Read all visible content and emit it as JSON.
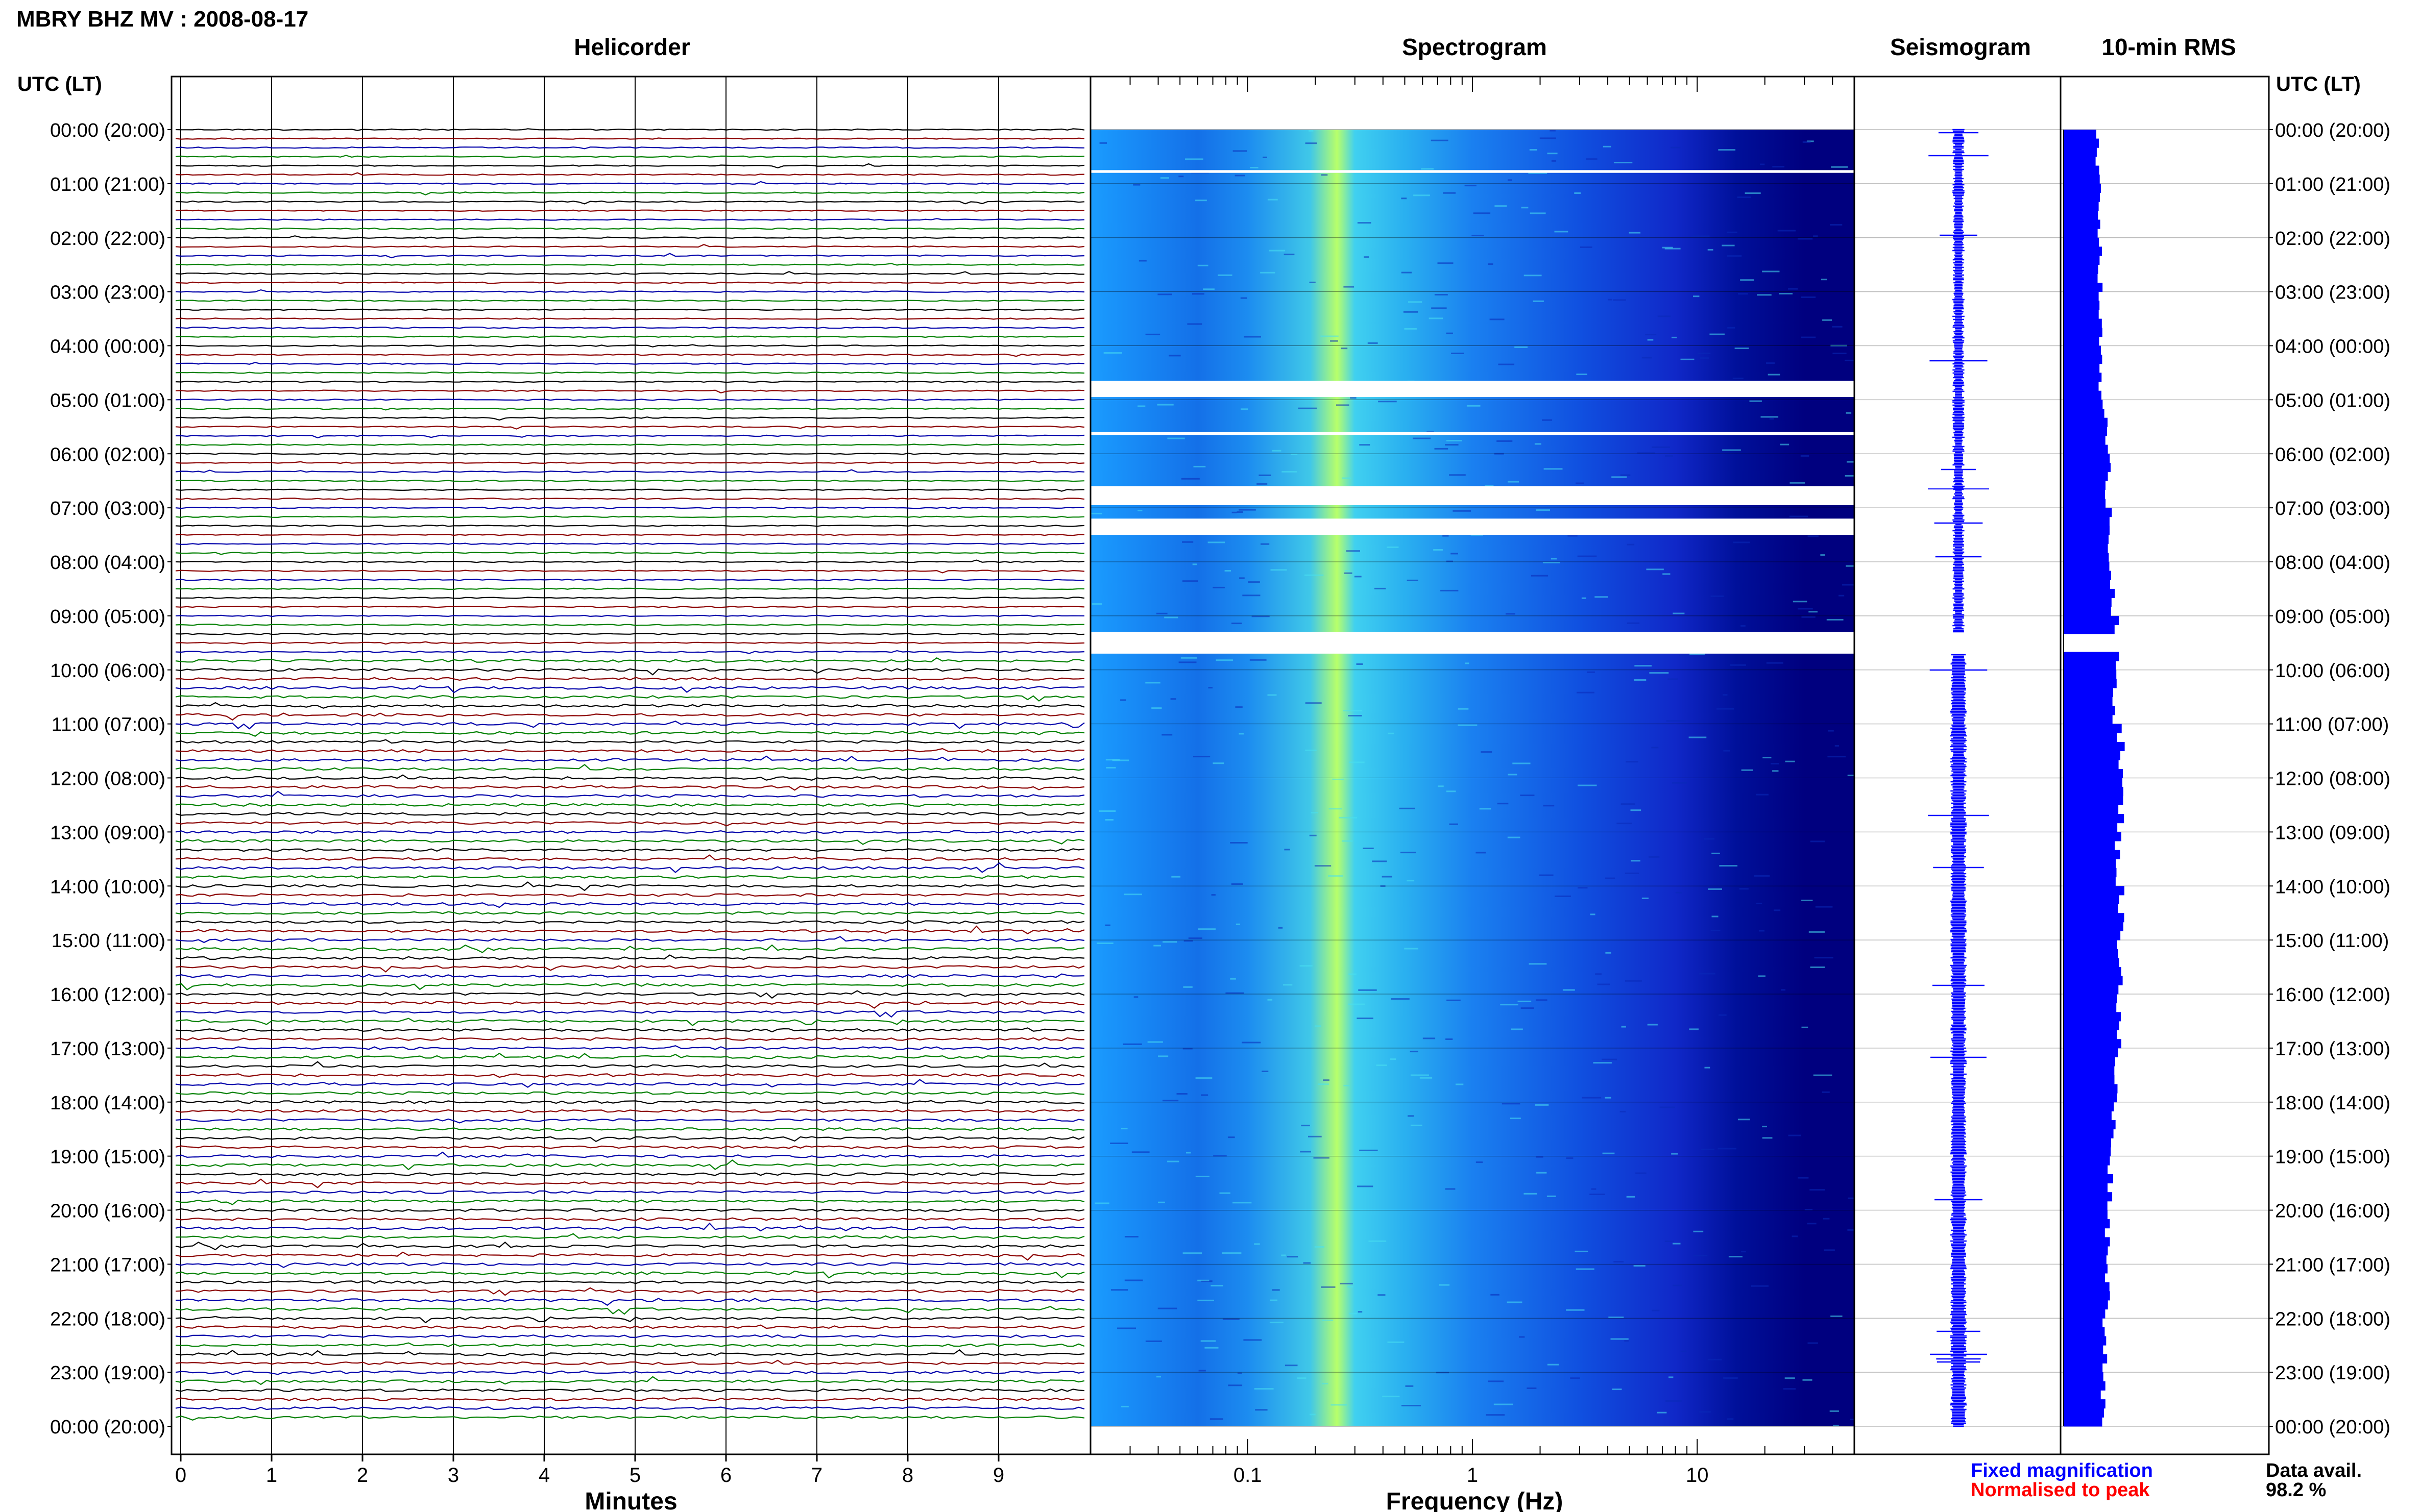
{
  "header": {
    "station_title": "MBRY BHZ MV : 2008-08-17",
    "utc_lt_label": "UTC (LT)"
  },
  "panels": {
    "helicorder": "Helicorder",
    "spectrogram": "Spectrogram",
    "seismogram": "Seismogram",
    "rms": "10-min RMS"
  },
  "legend": {
    "fixed": "Fixed magnification",
    "normalised": "Normalised to peak",
    "fixed_color": "#0000ff",
    "normalised_color": "#ff0000"
  },
  "availability": {
    "label": "Data avail.",
    "value": "98.2 %"
  },
  "colors": {
    "trace_colors": [
      "#000000",
      "#8b0000",
      "#0000aa",
      "#008000"
    ],
    "spectrogram_low": "#00007f",
    "spectrogram_high": "#c8ff50",
    "seismogram": "#0000ff",
    "rms": "#0000ff"
  },
  "chart_data": [
    {
      "type": "line",
      "name": "helicorder",
      "title": "Helicorder",
      "xlabel": "Minutes",
      "x_ticks": [
        "0",
        "1",
        "2",
        "3",
        "4",
        "5",
        "6",
        "7",
        "8",
        "9"
      ],
      "xlim": [
        0,
        10
      ],
      "row_minutes": 10,
      "time_labels": [
        "00:00 (20:00)",
        "01:00 (21:00)",
        "02:00 (22:00)",
        "03:00 (23:00)",
        "04:00 (00:00)",
        "05:00 (01:00)",
        "06:00 (02:00)",
        "07:00 (03:00)",
        "08:00 (04:00)",
        "09:00 (05:00)",
        "10:00 (06:00)",
        "11:00 (07:00)",
        "12:00 (08:00)",
        "13:00 (09:00)",
        "14:00 (10:00)",
        "15:00 (11:00)",
        "16:00 (12:00)",
        "17:00 (13:00)",
        "18:00 (14:00)",
        "19:00 (15:00)",
        "20:00 (16:00)",
        "21:00 (17:00)",
        "22:00 (18:00)",
        "23:00 (19:00)",
        "00:00 (20:00)"
      ]
    },
    {
      "type": "heatmap",
      "name": "spectrogram",
      "title": "Spectrogram",
      "xlabel": "Frequency (Hz)",
      "x_scale": "log",
      "xlim": [
        0.02,
        50
      ],
      "x_ticks": [
        0.1,
        1,
        10
      ],
      "x_tick_labels": [
        "0.1",
        "1",
        "10"
      ],
      "peak_frequency_hz": 0.25,
      "gaps_hours": [
        [
          0.75,
          0.8
        ],
        [
          4.65,
          4.95
        ],
        [
          5.6,
          5.65
        ],
        [
          6.6,
          6.95
        ],
        [
          7.2,
          7.5
        ],
        [
          9.3,
          9.7
        ]
      ]
    },
    {
      "type": "line",
      "name": "seismogram",
      "title": "Seismogram",
      "gap_hours": [
        9.3,
        9.7
      ]
    },
    {
      "type": "bar",
      "name": "rms",
      "title": "10-min RMS",
      "orientation": "horizontal",
      "interval_minutes": 10,
      "hourly_rms": [
        0.65,
        0.7,
        0.7,
        0.7,
        0.72,
        0.8,
        0.85,
        0.9,
        0.92,
        1.0,
        1.0,
        1.1,
        1.1,
        1.05,
        1.1,
        1.1,
        1.05,
        1.0,
        0.95,
        0.9,
        0.85,
        0.85,
        0.8,
        0.75
      ],
      "gap_hours": [
        9.3,
        9.7
      ]
    }
  ]
}
